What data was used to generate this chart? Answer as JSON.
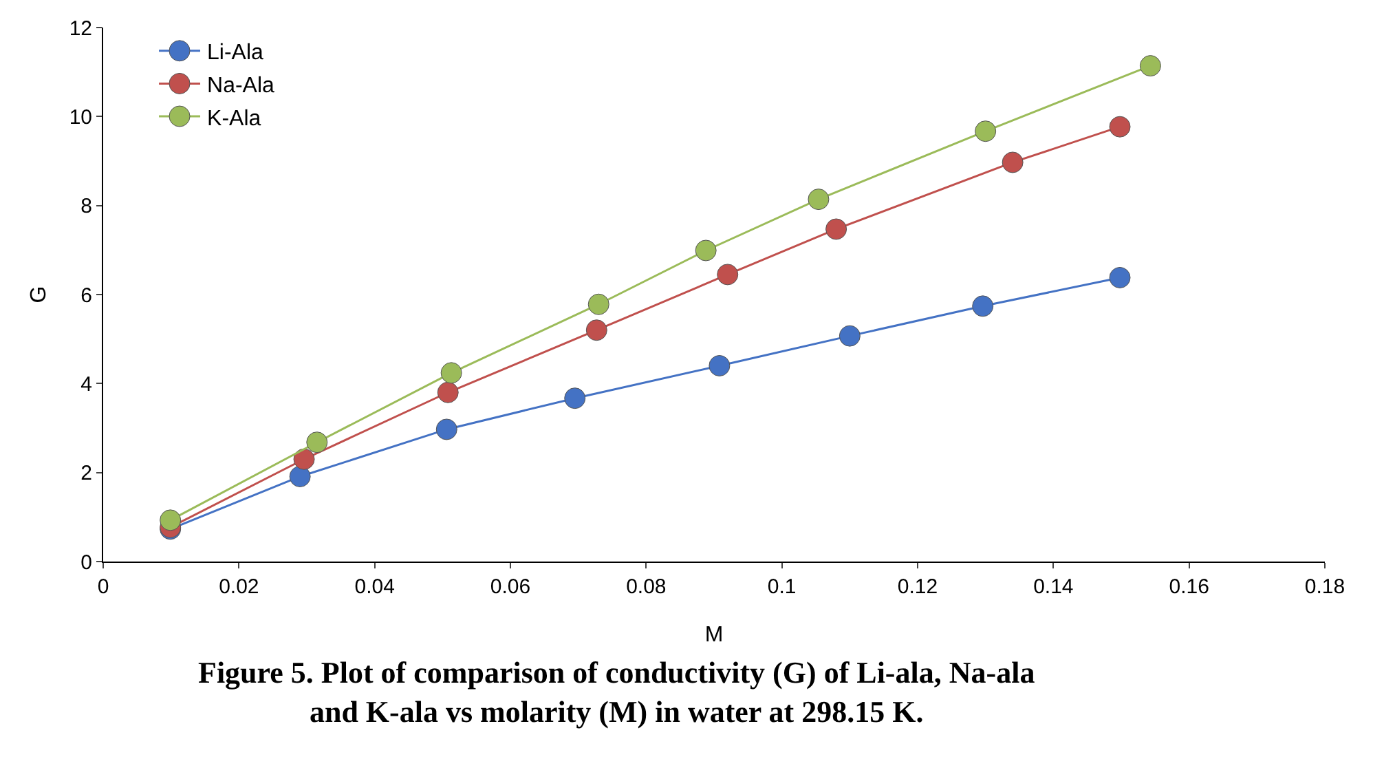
{
  "chart_data": {
    "type": "line",
    "xlabel": "M",
    "ylabel": "G",
    "marker": "circle",
    "line_style": "solid",
    "grid": false,
    "legend": "top left",
    "xlim": [
      0,
      0.18
    ],
    "xticks": [
      0,
      0.02,
      0.04,
      0.06,
      0.08,
      {
        "value": 0.1,
        "label": "0.1"
      },
      0.12,
      0.14,
      0.16,
      0.18
    ],
    "ylim": [
      0,
      12
    ],
    "yticks": [
      0,
      2,
      4,
      6,
      8,
      10,
      12
    ],
    "series": [
      {
        "name": "Li-Ala",
        "color": "#4472c4",
        "x": [
          0.0099,
          0.029,
          0.0506,
          0.0695,
          0.0908,
          0.11,
          0.1296,
          0.1498
        ],
        "values": [
          0.73,
          1.91,
          2.97,
          3.67,
          4.4,
          5.07,
          5.74,
          6.38
        ]
      },
      {
        "name": "Na-Ala",
        "color": "#c0504d",
        "x": [
          0.0099,
          0.0296,
          0.0508,
          0.0727,
          0.092,
          0.108,
          0.134,
          0.1498
        ],
        "values": [
          0.77,
          2.3,
          3.8,
          5.2,
          6.45,
          7.47,
          8.97,
          9.77
        ]
      },
      {
        "name": "K-Ala",
        "color": "#9bbb59",
        "x": [
          0.0099,
          0.0315,
          0.0513,
          0.073,
          0.0888,
          0.1054,
          0.13,
          0.1543
        ],
        "values": [
          0.93,
          2.68,
          4.24,
          5.78,
          6.99,
          8.14,
          9.67,
          11.14
        ]
      }
    ],
    "annotations": [
      "Figure 5. Plot of comparison of conductivity (G) of Li-ala, Na-ala\nand K-ala vs molarity (M) in water at 298.15 K."
    ]
  }
}
